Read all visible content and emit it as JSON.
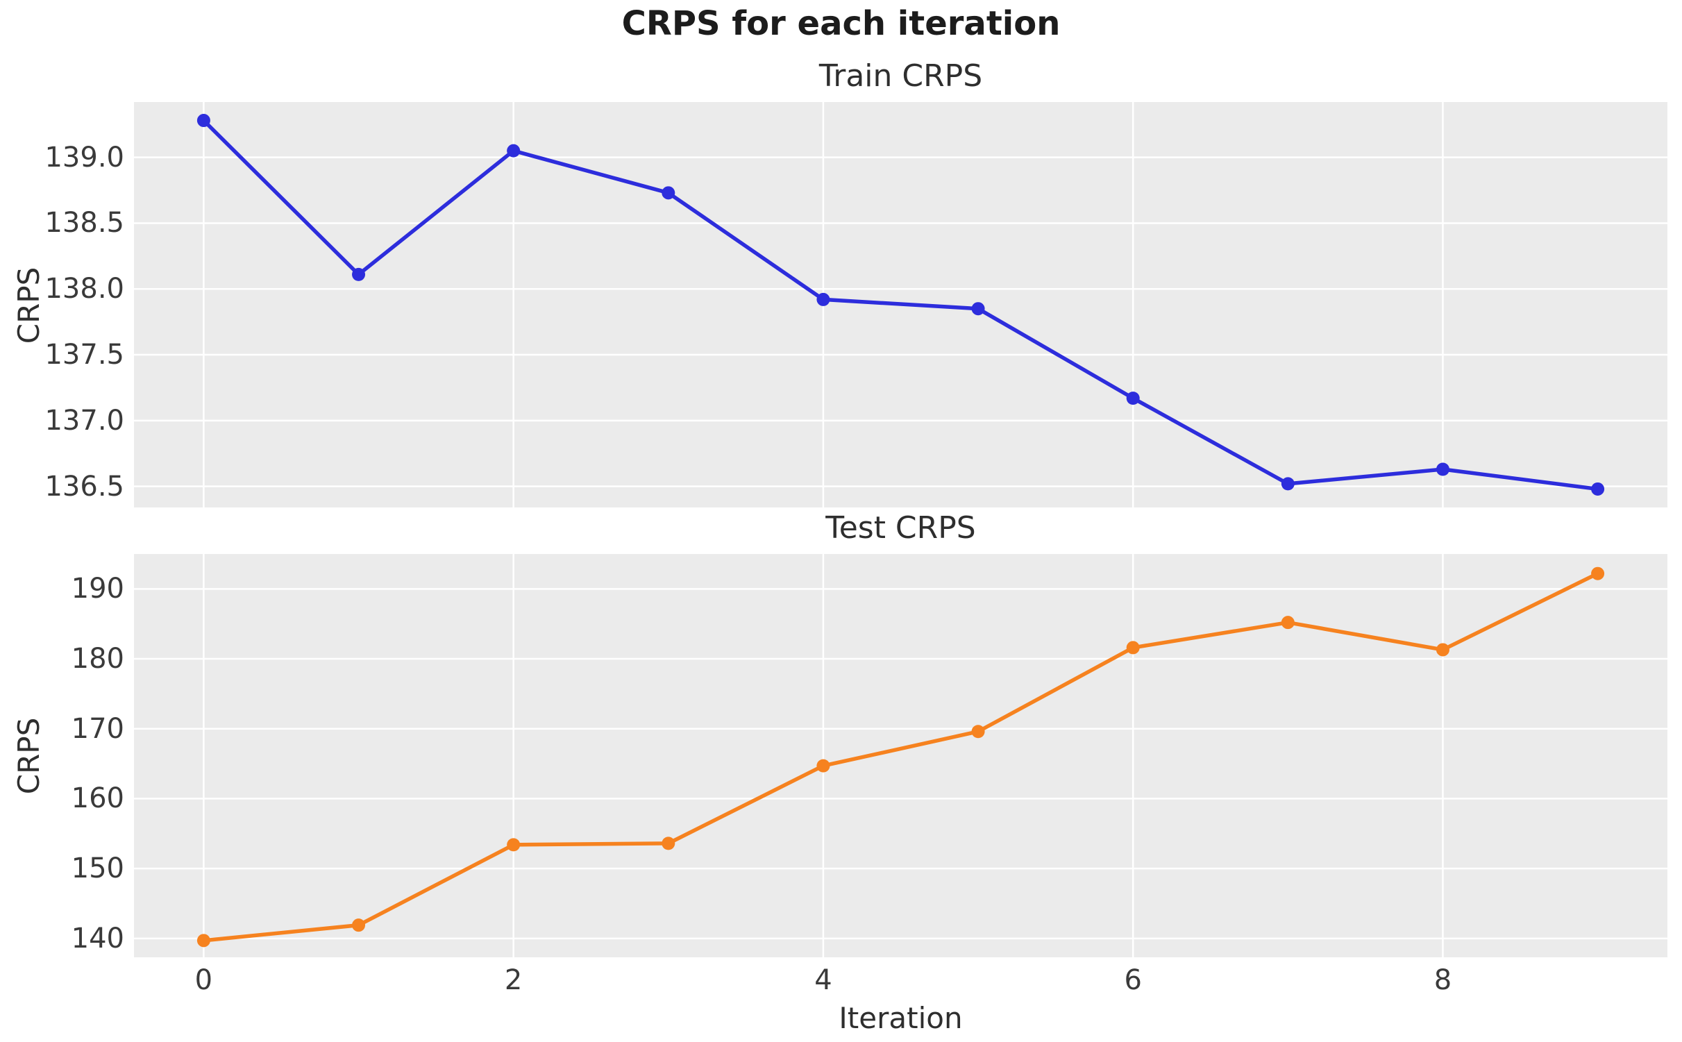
{
  "title": "CRPS for each iteration",
  "colors": {
    "train_line": "#2d2ddc",
    "test_line": "#f6821f",
    "plot_background": "#ebebeb",
    "gridline": "#ffffff",
    "title_text": "#1c1c1c",
    "label_text": "#2e2e2e",
    "tick_text": "#3a3a3a"
  },
  "chart_data": [
    {
      "type": "line",
      "title": "Train CRPS",
      "xlabel": "",
      "ylabel": "CRPS",
      "grid": true,
      "legend": "none",
      "xlim": [
        -0.45,
        9.45
      ],
      "ylim": [
        136.34,
        139.42
      ],
      "xticks": [
        0,
        2,
        4,
        6,
        8
      ],
      "yticks": [
        139.0,
        138.5,
        138.0,
        137.5,
        137.0,
        136.5
      ],
      "ytick_labels": [
        "139.0",
        "138.5",
        "138.0",
        "137.5",
        "137.0",
        "136.5"
      ],
      "series": [
        {
          "name": "Train CRPS",
          "color": "#2d2ddc",
          "marker": "circle",
          "x": [
            0,
            1,
            2,
            3,
            4,
            5,
            6,
            7,
            8,
            9
          ],
          "y": [
            139.28,
            138.11,
            139.05,
            138.73,
            137.92,
            137.85,
            137.17,
            136.52,
            136.63,
            136.48
          ]
        }
      ]
    },
    {
      "type": "line",
      "title": "Test CRPS",
      "xlabel": "Iteration",
      "ylabel": "CRPS",
      "grid": true,
      "legend": "none",
      "xlim": [
        -0.45,
        9.45
      ],
      "ylim": [
        137.3,
        195.0
      ],
      "xticks": [
        0,
        2,
        4,
        6,
        8
      ],
      "xtick_labels": [
        "0",
        "2",
        "4",
        "6",
        "8"
      ],
      "yticks": [
        190,
        180,
        170,
        160,
        150,
        140
      ],
      "ytick_labels": [
        "190",
        "180",
        "170",
        "160",
        "150",
        "140"
      ],
      "series": [
        {
          "name": "Test CRPS",
          "color": "#f6821f",
          "marker": "circle",
          "x": [
            0,
            1,
            2,
            3,
            4,
            5,
            6,
            7,
            8,
            9
          ],
          "y": [
            139.7,
            141.9,
            153.4,
            153.6,
            164.7,
            169.6,
            181.6,
            185.2,
            181.3,
            192.2
          ]
        }
      ]
    }
  ]
}
